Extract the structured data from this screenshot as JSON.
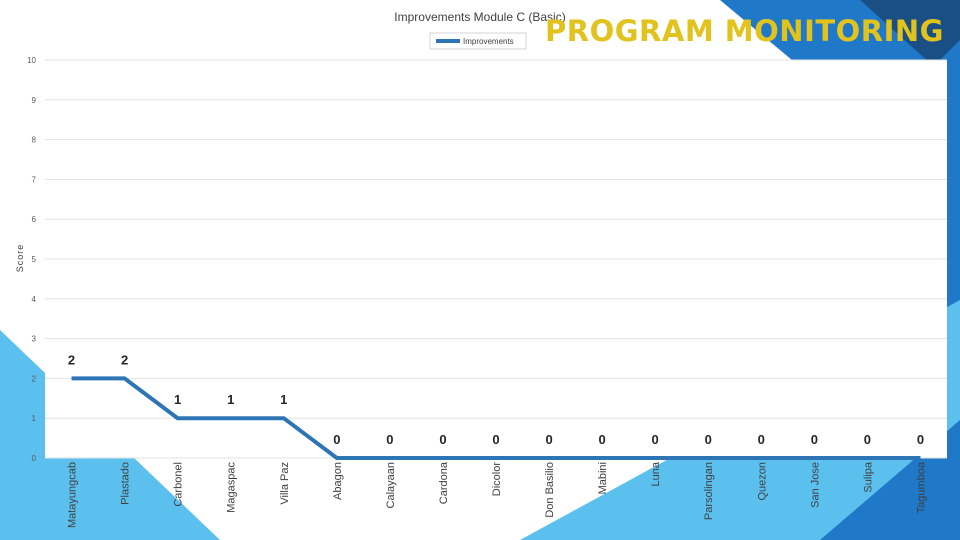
{
  "slide": {
    "banner": "PROGRAM MONITORING"
  },
  "colors": {
    "line": "#2e75b6",
    "grid": "#e3e3e3",
    "banner": "#e2c21c",
    "frame_light": "#5bc0ee",
    "frame_dark": "#1f79c8",
    "frame_deep": "#1a4f86"
  },
  "chart_data": {
    "type": "line",
    "title": "Improvements Module C (Basic)",
    "xlabel": "",
    "ylabel": "Score",
    "ylim": [
      0,
      10
    ],
    "yticks": [
      0,
      1,
      2,
      3,
      4,
      5,
      6,
      7,
      8,
      9,
      10
    ],
    "grid": true,
    "legend_position": "top-center",
    "categories": [
      "Matayungcab",
      "Plastado",
      "Carbonel",
      "Magaspac",
      "Villa Paz",
      "Abagon",
      "Calayaan",
      "Cardona",
      "Dicolor",
      "Don Basilio",
      "Mabini",
      "Luna",
      "Parsolingan",
      "Quezon",
      "San Jose",
      "Sulipa",
      "Tagumboa"
    ],
    "series": [
      {
        "name": "Improvements",
        "values": [
          2,
          2,
          1,
          1,
          1,
          0,
          0,
          0,
          0,
          0,
          0,
          0,
          0,
          0,
          0,
          0,
          0
        ]
      }
    ],
    "data_labels": [
      "2",
      "2",
      "1",
      "1",
      "1",
      "0",
      "0",
      "0",
      "0",
      "0",
      "0",
      "0",
      "0",
      "0",
      "0",
      "0",
      "0"
    ]
  }
}
